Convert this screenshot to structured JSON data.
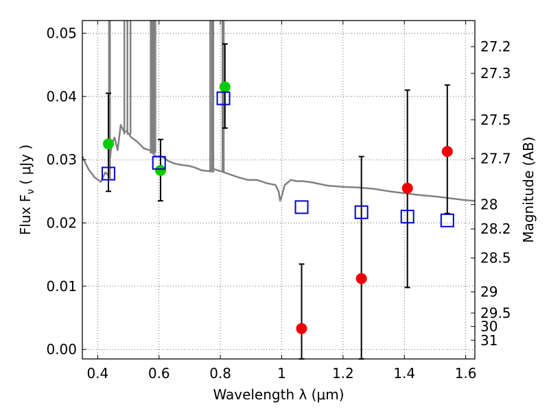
{
  "chart_data": {
    "type": "scatter",
    "xlabel": "Wavelength  λ (μm)",
    "ylabel": "Flux  F",
    "ylabel_sub": "ν",
    "ylabel_unit": " ( μJy )",
    "y2label": "Magnitude (AB)",
    "xlim": [
      0.35,
      1.63
    ],
    "ylim": [
      -0.0015,
      0.052
    ],
    "grid": true,
    "x_ticks": [
      {
        "v": 0.4,
        "label": "0.4"
      },
      {
        "v": 0.6,
        "label": "0.6"
      },
      {
        "v": 0.8,
        "label": "0.8"
      },
      {
        "v": 1.0,
        "label": "1"
      },
      {
        "v": 1.2,
        "label": "1.2"
      },
      {
        "v": 1.4,
        "label": "1.4"
      },
      {
        "v": 1.6,
        "label": "1.6"
      }
    ],
    "y_ticks": [
      {
        "v": 0.0,
        "label": "0.00"
      },
      {
        "v": 0.01,
        "label": "0.01"
      },
      {
        "v": 0.02,
        "label": "0.02"
      },
      {
        "v": 0.03,
        "label": "0.03"
      },
      {
        "v": 0.04,
        "label": "0.04"
      },
      {
        "v": 0.05,
        "label": "0.05"
      }
    ],
    "mag_ticks": [
      {
        "mag": 27.2,
        "label": "27.2"
      },
      {
        "mag": 27.3,
        "label": "27.3"
      },
      {
        "mag": 27.5,
        "label": "27.5"
      },
      {
        "mag": 27.7,
        "label": "27.7"
      },
      {
        "mag": 28,
        "label": "28"
      },
      {
        "mag": 28.2,
        "label": "28.2"
      },
      {
        "mag": 28.5,
        "label": "28.5"
      },
      {
        "mag": 29,
        "label": "29"
      },
      {
        "mag": 29.5,
        "label": "29.5"
      },
      {
        "mag": 30,
        "label": "30"
      },
      {
        "mag": 31,
        "label": "31"
      }
    ],
    "model_spectrum": {
      "color": "#808080",
      "continuum": [
        [
          0.35,
          0.0305
        ],
        [
          0.37,
          0.0285
        ],
        [
          0.39,
          0.0272
        ],
        [
          0.41,
          0.0265
        ],
        [
          0.425,
          0.028
        ],
        [
          0.435,
          0.0275
        ],
        [
          0.445,
          0.0325
        ],
        [
          0.455,
          0.0335
        ],
        [
          0.465,
          0.0315
        ],
        [
          0.475,
          0.0355
        ],
        [
          0.485,
          0.0345
        ],
        [
          0.495,
          0.0345
        ],
        [
          0.51,
          0.0335
        ],
        [
          0.53,
          0.0328
        ],
        [
          0.55,
          0.0318
        ],
        [
          0.57,
          0.0315
        ],
        [
          0.59,
          0.0305
        ],
        [
          0.61,
          0.0305
        ],
        [
          0.63,
          0.0298
        ],
        [
          0.65,
          0.0294
        ],
        [
          0.67,
          0.0292
        ],
        [
          0.7,
          0.029
        ],
        [
          0.72,
          0.0287
        ],
        [
          0.74,
          0.0283
        ],
        [
          0.76,
          0.0282
        ],
        [
          0.78,
          0.0285
        ],
        [
          0.8,
          0.0282
        ],
        [
          0.83,
          0.0277
        ],
        [
          0.86,
          0.0272
        ],
        [
          0.89,
          0.0268
        ],
        [
          0.92,
          0.0268
        ],
        [
          0.95,
          0.0263
        ],
        [
          0.98,
          0.026
        ],
        [
          0.99,
          0.025
        ],
        [
          0.995,
          0.0235
        ],
        [
          1.0,
          0.0242
        ],
        [
          1.01,
          0.026
        ],
        [
          1.03,
          0.0268
        ],
        [
          1.05,
          0.0266
        ],
        [
          1.07,
          0.0266
        ],
        [
          1.1,
          0.0264
        ],
        [
          1.15,
          0.0259
        ],
        [
          1.2,
          0.0257
        ],
        [
          1.25,
          0.0256
        ],
        [
          1.3,
          0.0254
        ],
        [
          1.35,
          0.025
        ],
        [
          1.4,
          0.0247
        ],
        [
          1.45,
          0.0244
        ],
        [
          1.5,
          0.0242
        ],
        [
          1.55,
          0.0239
        ],
        [
          1.6,
          0.0236
        ],
        [
          1.63,
          0.0235
        ]
      ],
      "emission_lines": [
        {
          "x": 0.437,
          "base": 0.027
        },
        {
          "x": 0.44,
          "base": 0.027
        },
        {
          "x": 0.487,
          "base": 0.034
        },
        {
          "x": 0.497,
          "base": 0.034
        },
        {
          "x": 0.507,
          "base": 0.034
        },
        {
          "x": 0.573,
          "base": 0.031
        },
        {
          "x": 0.578,
          "base": 0.031
        },
        {
          "x": 0.583,
          "base": 0.031
        },
        {
          "x": 0.588,
          "base": 0.031
        },
        {
          "x": 0.767,
          "base": 0.028
        },
        {
          "x": 0.773,
          "base": 0.028
        },
        {
          "x": 0.777,
          "base": 0.028
        },
        {
          "x": 0.807,
          "base": 0.028
        },
        {
          "x": 0.811,
          "base": 0.028
        }
      ]
    },
    "series": [
      {
        "marker": "circle",
        "color": "#00cc00",
        "points": [
          {
            "x": 0.435,
            "y": 0.0325,
            "lo": 0.025,
            "hi": 0.0405
          },
          {
            "x": 0.605,
            "y": 0.0283,
            "lo": 0.0235,
            "hi": 0.0332
          },
          {
            "x": 0.815,
            "y": 0.0415,
            "lo": 0.035,
            "hi": 0.0483
          }
        ]
      },
      {
        "marker": "circle",
        "color": "#ee0000",
        "points": [
          {
            "x": 1.065,
            "y": 0.0033,
            "lo": -0.0015,
            "hi": 0.0135
          },
          {
            "x": 1.26,
            "y": 0.0112,
            "lo": -0.0015,
            "hi": 0.0305
          },
          {
            "x": 1.41,
            "y": 0.0255,
            "lo": 0.0098,
            "hi": 0.041
          },
          {
            "x": 1.54,
            "y": 0.0313,
            "lo": 0.0215,
            "hi": 0.0418
          }
        ]
      },
      {
        "marker": "square",
        "color": "#0000cc",
        "points": [
          {
            "x": 0.435,
            "y": 0.0278
          },
          {
            "x": 0.6,
            "y": 0.0295
          },
          {
            "x": 0.81,
            "y": 0.0397
          },
          {
            "x": 1.065,
            "y": 0.0225
          },
          {
            "x": 1.26,
            "y": 0.0217
          },
          {
            "x": 1.41,
            "y": 0.021
          },
          {
            "x": 1.54,
            "y": 0.0204
          }
        ]
      }
    ]
  }
}
